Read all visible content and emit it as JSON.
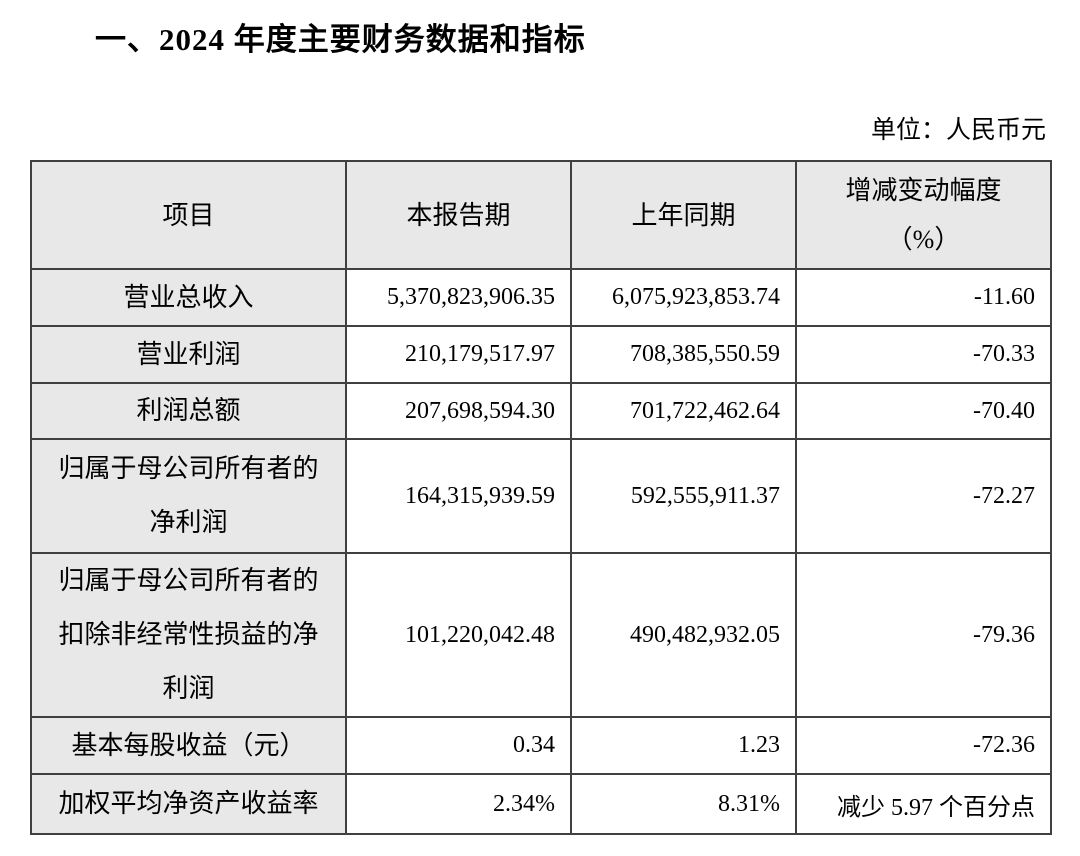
{
  "document": {
    "section_title": "一、2024 年度主要财务数据和指标",
    "unit_label": "单位：人民币元"
  },
  "table": {
    "headers": {
      "item": "项目",
      "current_period": "本报告期",
      "prior_period": "上年同期",
      "change": "增减变动幅度\n（%）"
    },
    "rows": [
      {
        "item": "营业总收入",
        "current": "5,370,823,906.35",
        "prior": "6,075,923,853.74",
        "change": "-11.60"
      },
      {
        "item": "营业利润",
        "current": "210,179,517.97",
        "prior": "708,385,550.59",
        "change": "-70.33"
      },
      {
        "item": "利润总额",
        "current": "207,698,594.30",
        "prior": "701,722,462.64",
        "change": "-70.40"
      },
      {
        "item": "归属于母公司所有者的\n净利润",
        "current": "164,315,939.59",
        "prior": "592,555,911.37",
        "change": "-72.27"
      },
      {
        "item": "归属于母公司所有者的\n扣除非经常性损益的净\n利润",
        "current": "101,220,042.48",
        "prior": "490,482,932.05",
        "change": "-79.36"
      },
      {
        "item": "基本每股收益（元）",
        "current": "0.34",
        "prior": "1.23",
        "change": "-72.36"
      },
      {
        "item": "加权平均净资产收益率",
        "current": "2.34%",
        "prior": "8.31%",
        "change": "减少 5.97 个百分点"
      }
    ],
    "colors": {
      "header_bg": "#e8e8e8",
      "item_col_bg": "#e8e8e8",
      "data_bg": "#ffffff",
      "border": "#404040",
      "text": "#000000"
    }
  }
}
